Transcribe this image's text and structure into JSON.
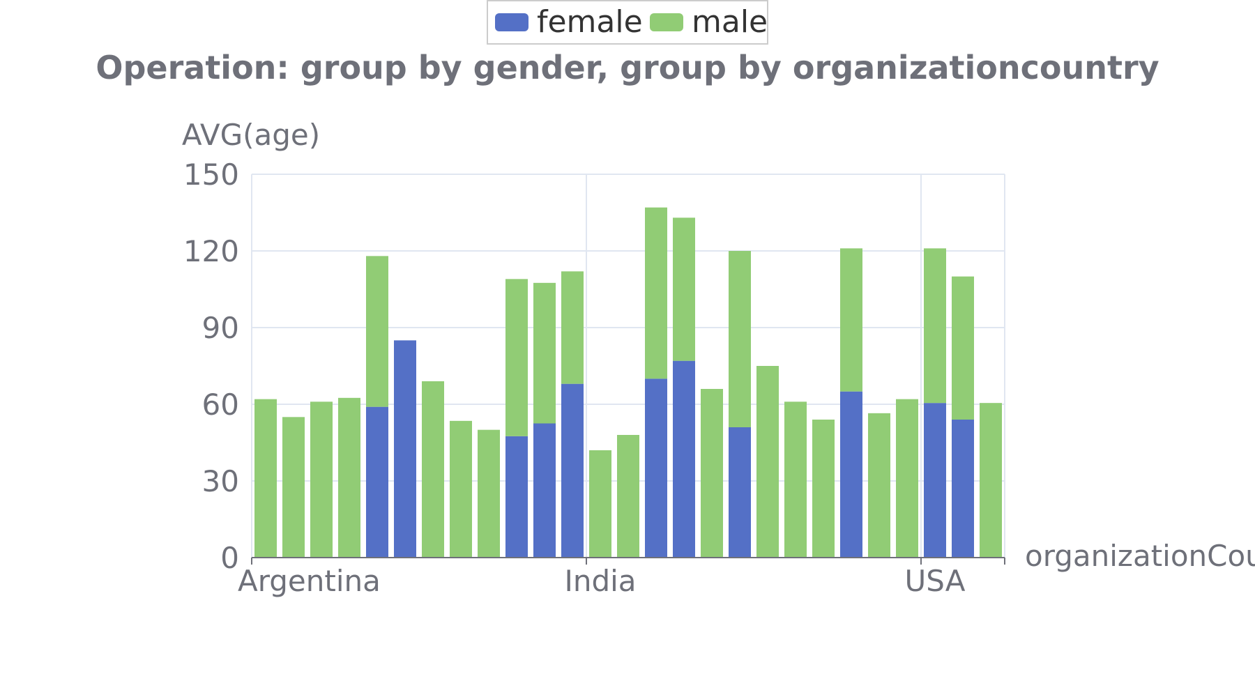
{
  "chart_data": {
    "type": "bar",
    "stacked": true,
    "title": "Operation: group by gender, group by organizationcountry",
    "ylabel": "AVG(age)",
    "xlabel": "organizationCou",
    "ylim": [
      0,
      150
    ],
    "yticks": [
      "0",
      "30",
      "60",
      "90",
      "120",
      "150"
    ],
    "category_labels": [
      {
        "index": 0,
        "text": "Argentina"
      },
      {
        "index": 12,
        "text": "India"
      },
      {
        "index": 24,
        "text": "USA"
      }
    ],
    "legend": [
      {
        "name": "female",
        "color": "#5470c6"
      },
      {
        "name": "male",
        "color": "#91cc75"
      }
    ],
    "series": [
      {
        "name": "female",
        "color": "#5470c6",
        "values": [
          0,
          0,
          0,
          0,
          59,
          85,
          0,
          0,
          0,
          47.5,
          52.5,
          68,
          0,
          0,
          70,
          77,
          0,
          51,
          0,
          0,
          0,
          65,
          0,
          0,
          60.5,
          54,
          0
        ]
      },
      {
        "name": "male",
        "color": "#91cc75",
        "values": [
          62,
          55,
          61,
          62.5,
          59,
          0,
          69,
          53.5,
          50,
          61.5,
          55,
          44,
          42,
          48,
          67,
          56,
          66,
          69,
          75,
          61,
          54,
          56,
          56.5,
          62,
          60.5,
          56,
          60.5
        ]
      }
    ]
  }
}
